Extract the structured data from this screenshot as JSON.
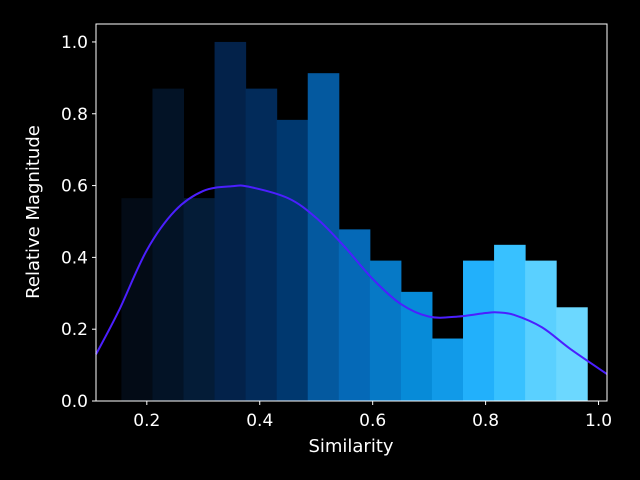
{
  "chart_data": {
    "type": "bar",
    "title": "",
    "xlabel": "Similarity",
    "ylabel": "Relative Magnitude",
    "xlim": [
      0.11,
      1.015
    ],
    "ylim": [
      0.0,
      1.05
    ],
    "xticks": [
      0.2,
      0.4,
      0.6,
      0.8,
      1.0
    ],
    "xtick_labels": [
      "0.2",
      "0.4",
      "0.6",
      "0.8",
      "1.0"
    ],
    "yticks": [
      0.0,
      0.2,
      0.4,
      0.6,
      0.8,
      1.0
    ],
    "ytick_labels": [
      "0.0",
      "0.2",
      "0.4",
      "0.6",
      "0.8",
      "1.0"
    ],
    "grid": false,
    "legend": "none",
    "bars": {
      "bin_edges": [
        0.155,
        0.21,
        0.265,
        0.32,
        0.375,
        0.43,
        0.485,
        0.54,
        0.595,
        0.65,
        0.705,
        0.76,
        0.815,
        0.87,
        0.925,
        0.98
      ],
      "values": [
        0.565,
        0.87,
        0.565,
        1.0,
        0.87,
        0.783,
        0.913,
        0.478,
        0.391,
        0.304,
        0.174,
        0.391,
        0.435,
        0.391,
        0.261
      ],
      "colors": [
        "#030b16",
        "#031326",
        "#041c37",
        "#03224a",
        "#022b5a",
        "#00386f",
        "#04599f",
        "#0569b7",
        "#0679c6",
        "#078bd8",
        "#119ae8",
        "#22b0fb",
        "#38c1ff",
        "#5ad0ff",
        "#6cd8ff"
      ]
    },
    "curve": {
      "color": "#4b1fff",
      "x": [
        0.11,
        0.15,
        0.2,
        0.25,
        0.3,
        0.35,
        0.38,
        0.45,
        0.5,
        0.55,
        0.6,
        0.65,
        0.7,
        0.75,
        0.8,
        0.82,
        0.85,
        0.9,
        0.95,
        1.015
      ],
      "y": [
        0.13,
        0.25,
        0.42,
        0.53,
        0.585,
        0.598,
        0.597,
        0.565,
        0.51,
        0.43,
        0.34,
        0.27,
        0.235,
        0.235,
        0.245,
        0.247,
        0.24,
        0.205,
        0.145,
        0.075
      ]
    }
  }
}
